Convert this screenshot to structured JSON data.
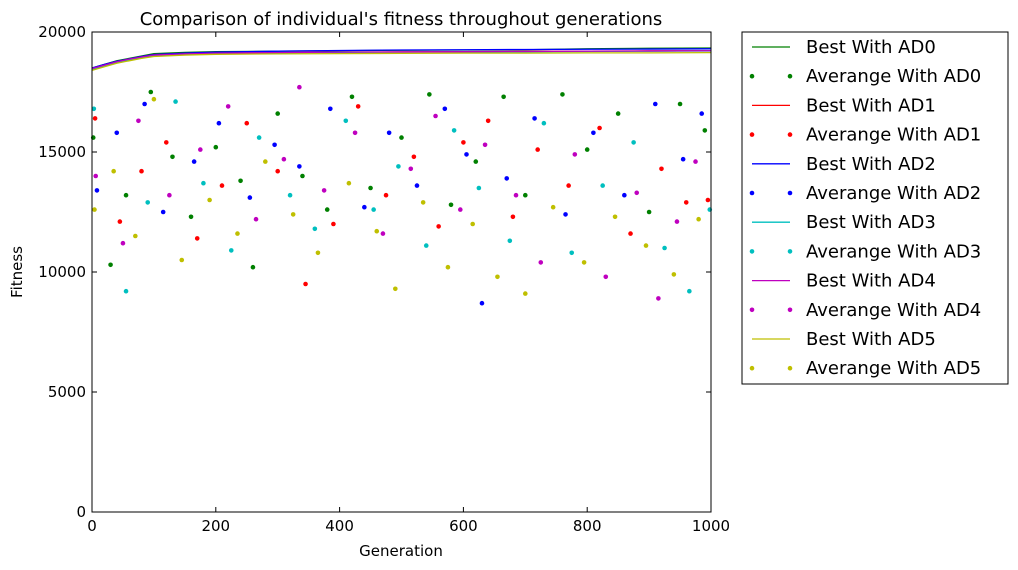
{
  "chart_data": {
    "type": "scatter",
    "title": "Comparison of individual's fitness throughout generations",
    "xlabel": "Generation",
    "ylabel": "Fitness",
    "xlim": [
      0,
      1000
    ],
    "ylim": [
      0,
      20000
    ],
    "xticks": [
      0,
      200,
      400,
      600,
      800,
      1000
    ],
    "yticks": [
      0,
      5000,
      10000,
      15000,
      20000
    ],
    "grid": false,
    "legend_position": "outside-right",
    "series": [
      {
        "name": "Best With AD0",
        "kind": "line",
        "color": "#008000",
        "x": [
          0,
          20,
          40,
          60,
          80,
          100,
          150,
          200,
          300,
          400,
          500,
          600,
          700,
          800,
          900,
          1000
        ],
        "y": [
          18500,
          18650,
          18800,
          18900,
          19000,
          19100,
          19150,
          19180,
          19200,
          19220,
          19240,
          19250,
          19260,
          19300,
          19320,
          19330
        ]
      },
      {
        "name": "Averange With AD0",
        "kind": "scatter",
        "color": "#008000",
        "x": [
          2,
          30,
          55,
          95,
          130,
          160,
          200,
          240,
          260,
          300,
          340,
          380,
          420,
          450,
          500,
          545,
          580,
          620,
          665,
          700,
          760,
          800,
          850,
          900,
          950,
          990
        ],
        "y": [
          15600,
          10300,
          13200,
          17500,
          14800,
          12300,
          15200,
          13800,
          10200,
          16600,
          14000,
          12600,
          17300,
          13500,
          15600,
          17400,
          12800,
          14600,
          17300,
          13200,
          17400,
          15100,
          16600,
          12500,
          17000,
          15900
        ]
      },
      {
        "name": "Best With AD1",
        "kind": "line",
        "color": "#ff0000",
        "x": [
          0,
          20,
          40,
          60,
          80,
          100,
          150,
          200,
          300,
          400,
          500,
          600,
          700,
          800,
          900,
          1000
        ],
        "y": [
          18450,
          18600,
          18750,
          18850,
          18950,
          19050,
          19100,
          19120,
          19140,
          19160,
          19170,
          19180,
          19190,
          19200,
          19210,
          19220
        ]
      },
      {
        "name": "Averange With AD1",
        "kind": "scatter",
        "color": "#ff0000",
        "x": [
          5,
          45,
          80,
          120,
          170,
          210,
          250,
          300,
          345,
          390,
          430,
          475,
          520,
          560,
          600,
          640,
          680,
          720,
          770,
          820,
          870,
          920,
          960,
          995
        ],
        "y": [
          16400,
          12100,
          14200,
          15400,
          11400,
          13600,
          16200,
          14200,
          9500,
          12000,
          16900,
          13200,
          14800,
          11900,
          15400,
          16300,
          12300,
          15100,
          13600,
          16000,
          11600,
          14300,
          12900,
          13000
        ]
      },
      {
        "name": "Best With AD2",
        "kind": "line",
        "color": "#0000ff",
        "x": [
          0,
          20,
          40,
          60,
          80,
          100,
          150,
          200,
          300,
          400,
          500,
          600,
          700,
          800,
          900,
          1000
        ],
        "y": [
          18500,
          18650,
          18780,
          18880,
          18980,
          19060,
          19120,
          19160,
          19200,
          19230,
          19250,
          19260,
          19270,
          19280,
          19290,
          19300
        ]
      },
      {
        "name": "Averange With AD2",
        "kind": "scatter",
        "color": "#0000ff",
        "x": [
          8,
          40,
          85,
          115,
          165,
          205,
          255,
          295,
          335,
          385,
          440,
          480,
          525,
          570,
          605,
          630,
          670,
          715,
          765,
          810,
          860,
          910,
          955,
          985
        ],
        "y": [
          13400,
          15800,
          17000,
          12500,
          14600,
          16200,
          13100,
          15300,
          14400,
          16800,
          12700,
          15800,
          13600,
          16800,
          14900,
          8700,
          13900,
          16400,
          12400,
          15800,
          13200,
          17000,
          14700,
          16600
        ]
      },
      {
        "name": "Best With AD3",
        "kind": "line",
        "color": "#00bfbf",
        "x": [
          0,
          20,
          40,
          60,
          80,
          100,
          150,
          200,
          300,
          400,
          500,
          600,
          700,
          800,
          900,
          1000
        ],
        "y": [
          18450,
          18600,
          18720,
          18830,
          18930,
          19020,
          19080,
          19110,
          19130,
          19150,
          19160,
          19170,
          19180,
          19190,
          19200,
          19210
        ]
      },
      {
        "name": "Averange With AD3",
        "kind": "scatter",
        "color": "#00bfbf",
        "x": [
          3,
          55,
          90,
          135,
          180,
          225,
          270,
          320,
          360,
          410,
          455,
          495,
          540,
          585,
          625,
          675,
          730,
          775,
          825,
          875,
          925,
          965,
          998
        ],
        "y": [
          16800,
          9200,
          12900,
          17100,
          13700,
          10900,
          15600,
          13200,
          11800,
          16300,
          12600,
          14400,
          11100,
          15900,
          13500,
          11300,
          16200,
          10800,
          13600,
          15400,
          11000,
          9200,
          12600
        ]
      },
      {
        "name": "Best With AD4",
        "kind": "line",
        "color": "#bf00bf",
        "x": [
          0,
          20,
          40,
          60,
          80,
          100,
          150,
          200,
          300,
          400,
          500,
          600,
          700,
          800,
          900,
          1000
        ],
        "y": [
          18480,
          18620,
          18760,
          18870,
          18960,
          19040,
          19090,
          19120,
          19140,
          19160,
          19170,
          19180,
          19190,
          19200,
          19210,
          19220
        ]
      },
      {
        "name": "Averange With AD4",
        "kind": "scatter",
        "color": "#bf00bf",
        "x": [
          6,
          50,
          75,
          125,
          175,
          220,
          265,
          310,
          335,
          375,
          425,
          470,
          515,
          555,
          595,
          635,
          685,
          725,
          780,
          830,
          880,
          915,
          945,
          975
        ],
        "y": [
          14000,
          11200,
          16300,
          13200,
          15100,
          16900,
          12200,
          14700,
          17700,
          13400,
          15800,
          11600,
          14300,
          16500,
          12600,
          15300,
          13200,
          10400,
          14900,
          9800,
          13300,
          8900,
          12100,
          14600
        ]
      },
      {
        "name": "Best With AD5",
        "kind": "line",
        "color": "#bfbf00",
        "x": [
          0,
          20,
          40,
          60,
          80,
          100,
          150,
          200,
          300,
          400,
          500,
          600,
          700,
          800,
          900,
          1000
        ],
        "y": [
          18400,
          18550,
          18700,
          18800,
          18900,
          18980,
          19040,
          19070,
          19090,
          19100,
          19110,
          19120,
          19120,
          19130,
          19130,
          19140
        ]
      },
      {
        "name": "Averange With AD5",
        "kind": "scatter",
        "color": "#bfbf00",
        "x": [
          4,
          35,
          70,
          100,
          145,
          190,
          235,
          280,
          325,
          365,
          415,
          460,
          490,
          535,
          575,
          615,
          655,
          700,
          745,
          795,
          845,
          895,
          940,
          980
        ],
        "y": [
          12600,
          14200,
          11500,
          17200,
          10500,
          13000,
          11600,
          14600,
          12400,
          10800,
          13700,
          11700,
          9300,
          12900,
          10200,
          12000,
          9800,
          9100,
          12700,
          10400,
          12300,
          11100,
          9900,
          12200
        ]
      }
    ]
  }
}
